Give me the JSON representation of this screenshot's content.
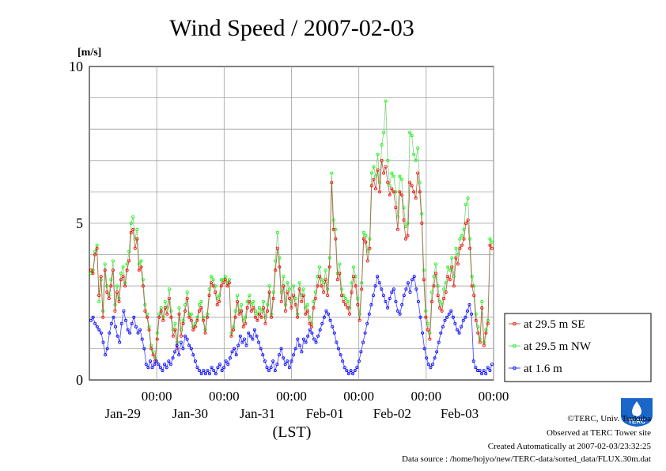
{
  "chart_data": {
    "type": "line",
    "title": "Wind Speed / 2007-02-03",
    "ylabel": "[m/s]",
    "xlabel": "(LST)",
    "ylim": [
      0,
      10
    ],
    "yticks": [
      {
        "value": 0,
        "label": "0"
      },
      {
        "value": 5,
        "label": "5"
      },
      {
        "value": 10,
        "label": "10"
      }
    ],
    "xlim_days": [
      0,
      6
    ],
    "x_day_labels": [
      "Jan-29",
      "Jan-30",
      "Jan-31",
      "Feb-01",
      "Feb-02",
      "Feb-03"
    ],
    "x_time_label": "00:00",
    "grid": true,
    "legend_position": "right",
    "series": [
      {
        "name": "at 29.5 m SE",
        "color": "#ff0000",
        "line_color": "#b06040",
        "values": [
          3.5,
          3.4,
          4.0,
          4.2,
          2.7,
          3.3,
          2.0,
          3.5,
          2.8,
          2.6,
          3.0,
          3.5,
          2.2,
          2.8,
          2.5,
          3.2,
          3.3,
          3.0,
          3.5,
          3.8,
          4.7,
          4.8,
          4.2,
          4.5,
          3.5,
          3.6,
          3.0,
          2.2,
          2.0,
          1.6,
          1.0,
          0.8,
          0.6,
          1.3,
          2.0,
          2.2,
          1.9,
          2.3,
          2.1,
          2.6,
          2.0,
          1.4,
          1.6,
          1.0,
          2.1,
          1.4,
          1.8,
          2.2,
          2.6,
          2.0,
          1.9,
          1.6,
          1.7,
          1.9,
          2.2,
          2.3,
          1.9,
          1.5,
          2.0,
          2.7,
          3.1,
          3.0,
          2.8,
          2.4,
          2.5,
          3.0,
          3.1,
          3.2,
          3.0,
          3.1,
          1.4,
          1.6,
          2.0,
          2.5,
          2.1,
          2.2,
          1.7,
          1.8,
          2.3,
          2.5,
          2.2,
          2.3,
          2.0,
          1.9,
          2.1,
          2.0,
          2.3,
          1.8,
          2.2,
          2.8,
          2.0,
          2.6,
          3.5,
          4.2,
          3.6,
          2.5,
          3.0,
          2.2,
          2.8,
          2.6,
          2.3,
          2.7,
          2.4,
          2.0,
          2.9,
          2.5,
          2.7,
          2.1,
          2.2,
          1.8,
          1.7,
          2.3,
          2.6,
          3.0,
          3.3,
          3.0,
          2.8,
          3.2,
          2.7,
          3.6,
          6.3,
          4.8,
          4.5,
          3.2,
          3.4,
          2.7,
          2.5,
          2.4,
          2.3,
          2.1,
          2.8,
          3.3,
          3.0,
          2.4,
          1.9,
          2.9,
          4.5,
          4.4,
          3.8,
          4.2,
          6.2,
          6.4,
          6.1,
          6.7,
          6.0,
          7.0,
          6.6,
          6.8,
          6.3,
          5.9,
          6.1,
          6.0,
          5.5,
          4.8,
          6.0,
          5.9,
          5.1,
          4.5,
          4.6,
          6.3,
          6.2,
          6.0,
          5.8,
          6.6,
          6.0,
          5.0,
          3.2,
          2.0,
          1.6,
          1.3,
          2.5,
          3.0,
          3.4,
          2.7,
          2.3,
          2.2,
          2.6,
          2.8,
          3.3,
          3.2,
          3.6,
          3.0,
          3.9,
          3.7,
          4.2,
          4.3,
          4.5,
          5.0,
          5.1,
          4.2,
          3.0,
          2.7,
          1.9,
          1.5,
          1.2,
          2.3,
          1.1,
          1.5,
          1.8,
          4.3,
          4.2
        ]
      },
      {
        "name": "at 29.5 m NW",
        "color": "#00ff00",
        "line_color": "#80d080",
        "values": [
          3.4,
          3.5,
          4.1,
          4.3,
          2.5,
          3.2,
          2.2,
          3.7,
          3.0,
          2.7,
          3.2,
          3.8,
          2.4,
          3.0,
          2.6,
          3.4,
          3.6,
          3.1,
          3.7,
          4.1,
          5.0,
          5.2,
          4.5,
          4.8,
          3.7,
          3.8,
          3.2,
          2.4,
          2.1,
          1.7,
          1.1,
          0.9,
          0.7,
          1.5,
          2.1,
          2.3,
          2.0,
          2.5,
          2.3,
          2.9,
          2.2,
          1.6,
          1.8,
          1.2,
          2.3,
          1.6,
          1.9,
          2.4,
          2.8,
          2.1,
          2.1,
          1.7,
          1.8,
          2.0,
          2.4,
          2.5,
          2.0,
          1.6,
          2.1,
          2.9,
          3.3,
          3.2,
          3.0,
          2.6,
          2.7,
          3.2,
          3.2,
          3.3,
          3.1,
          3.2,
          1.5,
          1.7,
          2.2,
          2.7,
          2.2,
          2.4,
          1.9,
          2.0,
          2.5,
          2.7,
          2.4,
          2.5,
          2.2,
          2.1,
          2.3,
          2.2,
          2.5,
          2.0,
          2.4,
          3.0,
          2.1,
          2.8,
          3.8,
          4.7,
          3.9,
          2.8,
          3.3,
          2.4,
          3.1,
          2.9,
          2.5,
          3.0,
          2.6,
          2.1,
          3.1,
          2.7,
          2.9,
          2.3,
          2.4,
          2.0,
          1.8,
          2.5,
          2.8,
          3.3,
          3.6,
          3.2,
          3.1,
          3.5,
          2.9,
          3.9,
          6.6,
          5.1,
          4.8,
          3.4,
          3.7,
          2.9,
          2.7,
          2.6,
          2.5,
          2.3,
          3.1,
          3.6,
          3.3,
          2.6,
          2.1,
          3.1,
          4.7,
          4.6,
          4.1,
          4.5,
          6.6,
          6.8,
          6.5,
          7.2,
          6.3,
          7.5,
          7.9,
          8.9,
          7.0,
          6.2,
          6.6,
          6.5,
          6.0,
          5.2,
          6.5,
          6.4,
          5.5,
          4.9,
          5.0,
          7.9,
          7.8,
          7.2,
          7.0,
          7.4,
          6.3,
          5.3,
          3.5,
          2.2,
          1.8,
          1.5,
          2.8,
          3.3,
          3.7,
          3.0,
          2.5,
          2.4,
          2.9,
          3.1,
          3.6,
          3.5,
          3.9,
          3.3,
          4.2,
          4.0,
          4.5,
          4.6,
          4.8,
          5.6,
          5.8,
          4.5,
          3.3,
          3.0,
          2.1,
          1.7,
          1.3,
          2.5,
          1.2,
          1.6,
          1.9,
          4.5,
          4.4
        ]
      },
      {
        "name": "at 1.6 m",
        "color": "#0000ff",
        "line_color": "#4040ff",
        "values": [
          1.9,
          2.0,
          1.8,
          1.7,
          1.6,
          1.5,
          1.2,
          0.8,
          1.0,
          1.5,
          1.8,
          2.0,
          1.7,
          1.4,
          1.2,
          1.8,
          2.2,
          1.9,
          1.6,
          1.5,
          1.8,
          2.0,
          1.7,
          1.5,
          1.6,
          1.3,
          1.0,
          0.5,
          0.4,
          0.6,
          0.4,
          0.5,
          0.6,
          0.5,
          0.4,
          0.3,
          0.5,
          0.4,
          0.6,
          0.5,
          0.7,
          0.9,
          1.1,
          0.8,
          1.2,
          1.0,
          1.4,
          1.3,
          1.1,
          1.0,
          0.8,
          0.6,
          0.4,
          0.3,
          0.2,
          0.3,
          0.2,
          0.3,
          0.2,
          0.4,
          0.3,
          0.2,
          0.4,
          0.5,
          0.3,
          0.4,
          0.6,
          0.5,
          0.7,
          0.9,
          1.0,
          0.8,
          1.1,
          1.4,
          1.2,
          1.3,
          1.1,
          1.5,
          1.4,
          1.3,
          1.6,
          1.4,
          1.2,
          1.0,
          0.8,
          0.6,
          0.4,
          0.3,
          0.4,
          0.6,
          0.3,
          0.5,
          0.8,
          1.0,
          0.7,
          0.5,
          0.6,
          0.4,
          0.6,
          0.8,
          1.0,
          1.3,
          1.1,
          0.9,
          1.3,
          1.2,
          1.4,
          1.6,
          1.5,
          1.3,
          1.2,
          1.4,
          1.6,
          1.8,
          2.0,
          2.2,
          2.1,
          1.9,
          1.7,
          1.5,
          1.2,
          1.0,
          0.8,
          0.6,
          0.4,
          0.3,
          0.2,
          0.3,
          0.2,
          0.3,
          0.4,
          0.6,
          0.9,
          1.2,
          1.5,
          1.8,
          2.1,
          2.4,
          2.7,
          3.0,
          3.3,
          3.1,
          2.9,
          2.7,
          2.5,
          2.3,
          2.6,
          2.8,
          2.9,
          2.5,
          2.2,
          2.1,
          2.4,
          2.7,
          2.9,
          3.1,
          2.8,
          3.2,
          3.3,
          2.9,
          2.5,
          2.0,
          1.5,
          1.0,
          0.7,
          0.5,
          0.4,
          0.5,
          0.7,
          0.9,
          1.2,
          1.5,
          1.7,
          1.9,
          2.0,
          2.1,
          2.2,
          2.0,
          1.8,
          1.6,
          1.5,
          1.7,
          1.9,
          2.0,
          2.2,
          2.4,
          2.1,
          0.6,
          0.4,
          0.3,
          0.3,
          0.2,
          0.3,
          0.2,
          0.4,
          0.3,
          0.5
        ]
      }
    ]
  },
  "footer": {
    "copyright": "©TERC, Univ. Tsukuba",
    "observed": "Observed at TERC Tower site",
    "created": "Created Automatically at 2007-02-03/23:32:25",
    "source": "Data source : /home/hojyo/new/TERC-data/sorted_data/FLUX.30m.dat"
  },
  "logo": {
    "text": "TERC",
    "color": "#1a66c9"
  }
}
